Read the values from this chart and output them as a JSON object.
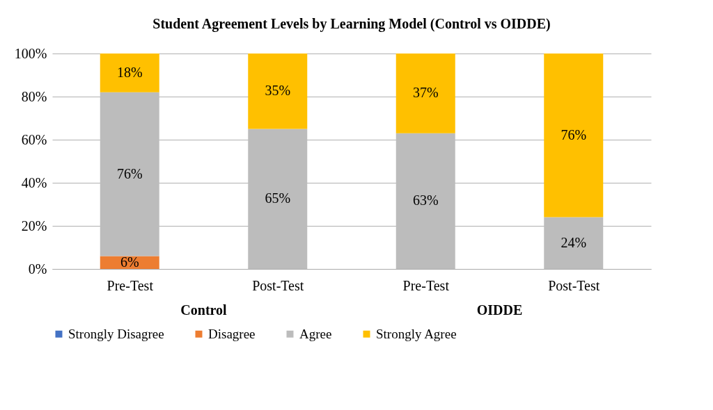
{
  "chart_data": {
    "type": "bar",
    "title": "Student Agreement Levels by Learning Model (Control vs OIDDE)",
    "categories": [
      "Pre-Test",
      "Post-Test",
      "Pre-Test",
      "Post-Test"
    ],
    "stacked": true,
    "series": [
      {
        "name": "Strongly Disagree",
        "color": "#4472c4",
        "values": [
          null,
          null,
          null,
          null
        ]
      },
      {
        "name": "Disagree",
        "color": "#ed7d31",
        "values": [
          6,
          null,
          null,
          null
        ],
        "value_labels": [
          "6%",
          null,
          null,
          null
        ]
      },
      {
        "name": "Agree",
        "color": "#bcbcbc",
        "values": [
          76,
          65,
          63,
          24
        ],
        "value_labels": [
          "76%",
          "65%",
          "63%",
          "24%"
        ]
      },
      {
        "name": "Strongly Agree",
        "color": "#ffc000",
        "values": [
          18,
          35,
          37,
          76
        ],
        "value_labels": [
          "18%",
          "35%",
          "37%",
          "76%"
        ]
      }
    ],
    "ylim": [
      0,
      100
    ],
    "yticks": [
      {
        "value": 0,
        "label": "0%"
      },
      {
        "value": 20,
        "label": "20%"
      },
      {
        "value": 40,
        "label": "40%"
      },
      {
        "value": 60,
        "label": "60%"
      },
      {
        "value": 80,
        "label": "80%"
      },
      {
        "value": 100,
        "label": "100%"
      }
    ],
    "grid": "y",
    "legend": "bottom",
    "annotations": [
      "Control",
      "OIDDE"
    ]
  }
}
